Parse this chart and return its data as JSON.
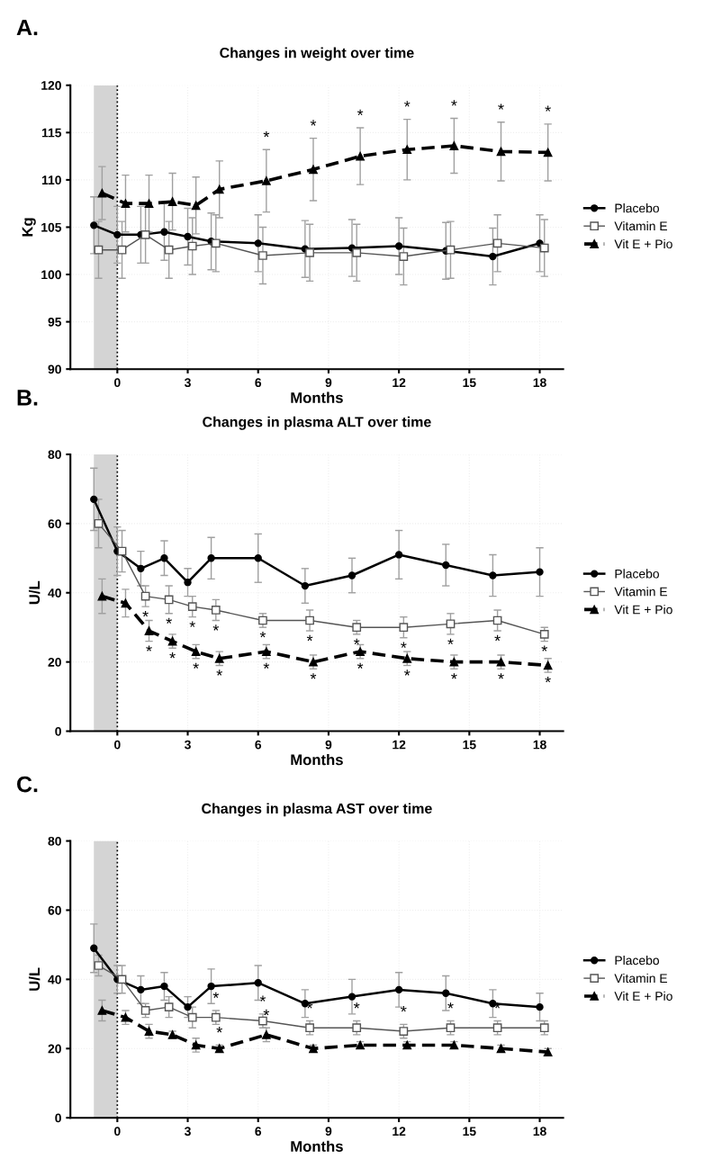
{
  "chart_data": [
    {
      "type": "line",
      "title": "Changes in weight over time",
      "xlabel": "Months",
      "ylabel": "Kg",
      "xlim": [
        -2,
        19
      ],
      "xticks": [
        0,
        3,
        6,
        9,
        12,
        15,
        18
      ],
      "ylim": [
        90,
        120
      ],
      "yticks": [
        90,
        95,
        100,
        105,
        110,
        115,
        120
      ],
      "legend": "right",
      "grid": true,
      "bands": [
        {
          "axis": "x",
          "from": -1,
          "to": 0,
          "color": "#d4d4d4"
        }
      ],
      "ref_lines": [
        {
          "axis": "x",
          "value": 0,
          "line_style": "dotted",
          "color": "#000000"
        }
      ],
      "series": [
        {
          "name": "Placebo",
          "color": "#000000",
          "marker": "circle",
          "line_style": "solid",
          "x": [
            -1,
            0,
            1,
            2,
            3,
            4,
            6,
            8,
            10,
            12,
            14,
            16,
            18
          ],
          "values": [
            105.2,
            104.2,
            104.2,
            104.5,
            104.0,
            103.5,
            103.3,
            102.7,
            102.8,
            103.0,
            102.5,
            101.9,
            103.3
          ],
          "errors": [
            3,
            3,
            3,
            3,
            3,
            3,
            3,
            3,
            3,
            3,
            3,
            3,
            3
          ]
        },
        {
          "name": "Vitamin E",
          "color": "#555555",
          "marker": "square",
          "line_style": "solid",
          "x": [
            -0.8,
            0.2,
            1.2,
            2.2,
            3.2,
            4.2,
            6.2,
            8.2,
            10.2,
            12.2,
            14.2,
            16.2,
            18.2
          ],
          "values": [
            102.6,
            102.6,
            104.2,
            102.6,
            103.0,
            103.3,
            102.0,
            102.3,
            102.3,
            101.9,
            102.6,
            103.3,
            102.8
          ],
          "errors": [
            3,
            3,
            3,
            3,
            3,
            3,
            3,
            3,
            3,
            3,
            3,
            3,
            3
          ]
        },
        {
          "name": "Vit E + Pio",
          "color": "#000000",
          "marker": "triangle",
          "line_style": "dashed",
          "x": [
            -0.65,
            0.35,
            1.35,
            2.35,
            3.35,
            4.35,
            6.35,
            8.35,
            10.35,
            12.35,
            14.35,
            16.35,
            18.35
          ],
          "values": [
            108.6,
            107.5,
            107.5,
            107.7,
            107.3,
            109.0,
            109.9,
            111.1,
            112.5,
            113.2,
            113.6,
            113.0,
            112.9
          ],
          "errors": [
            2.8,
            3,
            3,
            3,
            3,
            3,
            3.3,
            3.3,
            3,
            3.2,
            2.9,
            3.1,
            3
          ]
        }
      ],
      "annotations": [
        "A.",
        {
          "text": "*",
          "x": 6.35,
          "y": 113.2
        },
        {
          "text": "*",
          "x": 8.35,
          "y": 114.4
        },
        {
          "text": "*",
          "x": 10.35,
          "y": 115.5
        },
        {
          "text": "*",
          "x": 12.35,
          "y": 116.4
        },
        {
          "text": "*",
          "x": 14.35,
          "y": 116.5
        },
        {
          "text": "*",
          "x": 16.35,
          "y": 116.1
        },
        {
          "text": "*",
          "x": 18.35,
          "y": 115.9
        }
      ]
    },
    {
      "type": "line",
      "title": "Changes in plasma ALT over time",
      "xlabel": "Months",
      "ylabel": "U/L",
      "xlim": [
        -2,
        19
      ],
      "xticks": [
        0,
        3,
        6,
        9,
        12,
        15,
        18
      ],
      "ylim": [
        0,
        80
      ],
      "yticks": [
        0,
        20,
        40,
        60,
        80
      ],
      "legend": "right",
      "grid": true,
      "bands": [
        {
          "axis": "x",
          "from": -1,
          "to": 0,
          "color": "#d4d4d4"
        }
      ],
      "ref_lines": [
        {
          "axis": "x",
          "value": 0,
          "line_style": "dotted",
          "color": "#000000"
        }
      ],
      "series": [
        {
          "name": "Placebo",
          "color": "#000000",
          "marker": "circle",
          "line_style": "solid",
          "x": [
            -1,
            0,
            1,
            2,
            3,
            4,
            6,
            8,
            10,
            12,
            14,
            16,
            18
          ],
          "values": [
            67,
            52,
            47,
            50,
            43,
            50,
            50,
            42,
            45,
            51,
            48,
            45,
            46
          ],
          "errors": [
            9,
            7,
            5,
            5,
            4,
            6,
            7,
            5,
            5,
            7,
            6,
            6,
            7
          ]
        },
        {
          "name": "Vitamin E",
          "color": "#555555",
          "marker": "square",
          "line_style": "solid",
          "x": [
            -0.8,
            0.2,
            1.2,
            2.2,
            3.2,
            4.2,
            6.2,
            8.2,
            10.2,
            12.2,
            14.2,
            16.2,
            18.2
          ],
          "values": [
            60,
            52,
            39,
            38,
            36,
            35,
            32,
            32,
            30,
            30,
            31,
            32,
            28
          ],
          "errors": [
            7,
            6,
            3,
            4,
            3,
            3,
            2,
            3,
            2,
            3,
            3,
            3,
            2
          ]
        },
        {
          "name": "Vit E + Pio",
          "color": "#000000",
          "marker": "triangle",
          "line_style": "dashed",
          "x": [
            -0.65,
            0.35,
            1.35,
            2.35,
            3.35,
            4.35,
            6.35,
            8.35,
            10.35,
            12.35,
            14.35,
            16.35,
            18.35
          ],
          "values": [
            39,
            37,
            29,
            26,
            23,
            21,
            23,
            20,
            23,
            21,
            20,
            20,
            19
          ],
          "errors": [
            5,
            4,
            3,
            2,
            2,
            2,
            2,
            2,
            2,
            2,
            2,
            2,
            2
          ]
        }
      ],
      "annotations": [
        "B.",
        {
          "text": "*",
          "x": 1.2,
          "y": 36
        },
        {
          "text": "*",
          "x": 2.2,
          "y": 34
        },
        {
          "text": "*",
          "x": 3.2,
          "y": 33
        },
        {
          "text": "*",
          "x": 4.2,
          "y": 32
        },
        {
          "text": "*",
          "x": 6.2,
          "y": 30
        },
        {
          "text": "*",
          "x": 8.2,
          "y": 29
        },
        {
          "text": "*",
          "x": 10.2,
          "y": 28
        },
        {
          "text": "*",
          "x": 12.2,
          "y": 27
        },
        {
          "text": "*",
          "x": 14.2,
          "y": 28
        },
        {
          "text": "*",
          "x": 16.2,
          "y": 29
        },
        {
          "text": "*",
          "x": 18.2,
          "y": 26
        },
        {
          "text": "*",
          "x": 1.35,
          "y": 26
        },
        {
          "text": "*",
          "x": 2.35,
          "y": 24
        },
        {
          "text": "*",
          "x": 3.35,
          "y": 21
        },
        {
          "text": "*",
          "x": 4.35,
          "y": 19
        },
        {
          "text": "*",
          "x": 6.35,
          "y": 21
        },
        {
          "text": "*",
          "x": 8.35,
          "y": 18
        },
        {
          "text": "*",
          "x": 10.35,
          "y": 21
        },
        {
          "text": "*",
          "x": 12.35,
          "y": 19
        },
        {
          "text": "*",
          "x": 14.35,
          "y": 18
        },
        {
          "text": "*",
          "x": 16.35,
          "y": 18
        },
        {
          "text": "*",
          "x": 18.35,
          "y": 17
        }
      ]
    },
    {
      "type": "line",
      "title": "Changes in plasma AST over time",
      "xlabel": "Months",
      "ylabel": "U/L",
      "xlim": [
        -2,
        19
      ],
      "xticks": [
        0,
        3,
        6,
        9,
        12,
        15,
        18
      ],
      "ylim": [
        0,
        80
      ],
      "yticks": [
        0,
        20,
        40,
        60,
        80
      ],
      "legend": "right",
      "grid": true,
      "bands": [
        {
          "axis": "x",
          "from": -1,
          "to": 0,
          "color": "#d4d4d4"
        }
      ],
      "ref_lines": [
        {
          "axis": "x",
          "value": 0,
          "line_style": "dotted",
          "color": "#000000"
        }
      ],
      "series": [
        {
          "name": "Placebo",
          "color": "#000000",
          "marker": "circle",
          "line_style": "solid",
          "x": [
            -1,
            0,
            1,
            2,
            3,
            4,
            6,
            8,
            10,
            12,
            14,
            16,
            18
          ],
          "values": [
            49,
            40,
            37,
            38,
            32,
            38,
            39,
            33,
            35,
            37,
            36,
            33,
            32
          ],
          "errors": [
            7,
            4,
            4,
            4,
            3,
            5,
            5,
            4,
            5,
            5,
            5,
            4,
            4
          ]
        },
        {
          "name": "Vitamin E",
          "color": "#555555",
          "marker": "square",
          "line_style": "solid",
          "x": [
            -0.8,
            0.2,
            1.2,
            2.2,
            3.2,
            4.2,
            6.2,
            8.2,
            10.2,
            12.2,
            14.2,
            16.2,
            18.2
          ],
          "values": [
            44,
            40,
            31,
            32,
            29,
            29,
            28,
            26,
            26,
            25,
            26,
            26,
            26
          ],
          "errors": [
            3,
            4,
            2,
            3,
            3,
            2,
            2,
            2,
            2,
            2,
            2,
            2,
            2
          ]
        },
        {
          "name": "Vit E + Pio",
          "color": "#000000",
          "marker": "triangle",
          "line_style": "dashed",
          "x": [
            -0.65,
            0.35,
            1.35,
            2.35,
            3.35,
            4.35,
            6.35,
            8.35,
            10.35,
            12.35,
            14.35,
            16.35,
            18.35
          ],
          "values": [
            31,
            29,
            25,
            24,
            21,
            20,
            24,
            20,
            21,
            21,
            21,
            20,
            19
          ],
          "errors": [
            3,
            2,
            2,
            1,
            2,
            1,
            2,
            1,
            1,
            1,
            1,
            1,
            1
          ]
        }
      ],
      "annotations": [
        "C.",
        {
          "text": "*",
          "x": 4.2,
          "y": 31
        },
        {
          "text": "*",
          "x": 6.2,
          "y": 30
        },
        {
          "text": "*",
          "x": 8.2,
          "y": 28
        },
        {
          "text": "*",
          "x": 10.2,
          "y": 28
        },
        {
          "text": "*",
          "x": 12.2,
          "y": 27
        },
        {
          "text": "*",
          "x": 14.2,
          "y": 28
        },
        {
          "text": "*",
          "x": 16.2,
          "y": 28
        },
        {
          "text": "*",
          "x": 4.35,
          "y": 21
        },
        {
          "text": "*",
          "x": 6.35,
          "y": 26
        }
      ]
    }
  ]
}
